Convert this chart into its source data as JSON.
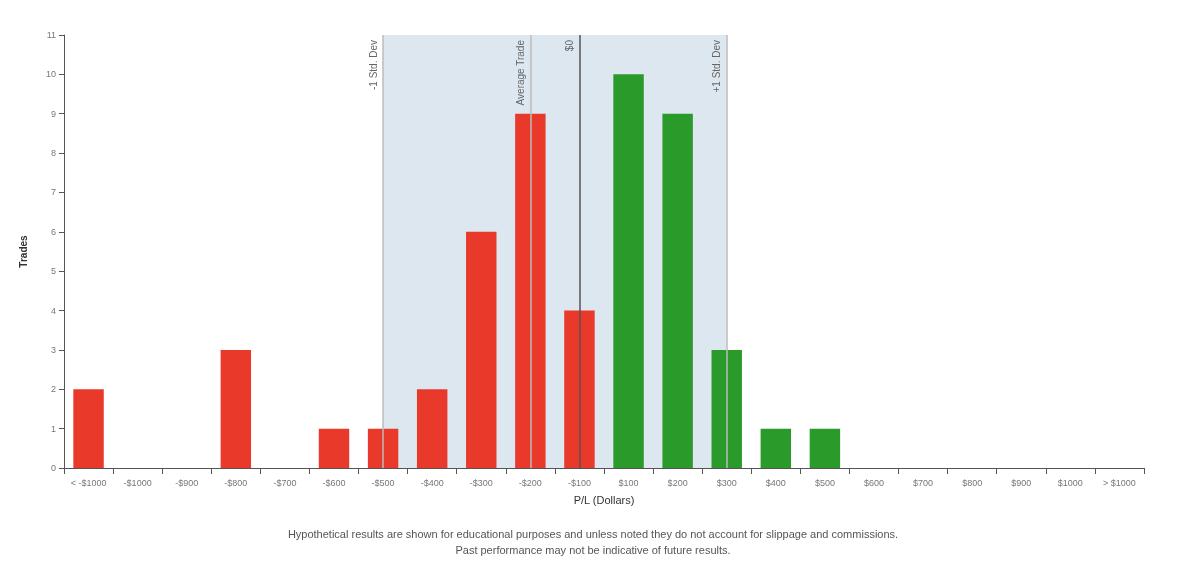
{
  "chart_data": {
    "type": "bar",
    "categories": [
      "< -$1000",
      "-$1000",
      "-$900",
      "-$800",
      "-$700",
      "-$600",
      "-$500",
      "-$400",
      "-$300",
      "-$200",
      "-$100",
      "$100",
      "$200",
      "$300",
      "$400",
      "$500",
      "$600",
      "$700",
      "$800",
      "$900",
      "$1000",
      "> $1000"
    ],
    "values": [
      2,
      0,
      0,
      3,
      0,
      1,
      1,
      2,
      6,
      9,
      4,
      10,
      9,
      3,
      1,
      1,
      0,
      0,
      0,
      0,
      0,
      0
    ],
    "colors": [
      "#e8392a",
      "#e8392a",
      "#e8392a",
      "#e8392a",
      "#e8392a",
      "#e8392a",
      "#e8392a",
      "#e8392a",
      "#e8392a",
      "#e8392a",
      "#e8392a",
      "#2a9a2a",
      "#2a9a2a",
      "#2a9a2a",
      "#2a9a2a",
      "#2a9a2a",
      "#2a9a2a",
      "#2a9a2a",
      "#2a9a2a",
      "#2a9a2a",
      "#2a9a2a",
      "#2a9a2a"
    ],
    "ylim": [
      0,
      11
    ],
    "yticks": [
      0,
      1,
      2,
      3,
      4,
      5,
      6,
      7,
      8,
      9,
      10,
      11
    ],
    "xlabel": "P/L (Dollars)",
    "ylabel": "Trades",
    "ref_lines": [
      {
        "axis": "x",
        "value": "-$500",
        "label": "-1 Std. Dev",
        "color": "#bbbbbb"
      },
      {
        "axis": "x",
        "value": "-$200",
        "label": "Average Trade",
        "color": "#bbbbbb"
      },
      {
        "axis": "x",
        "value": "-$100",
        "label": "$0",
        "color": "#555555"
      },
      {
        "axis": "x",
        "value": "$300",
        "label": "+1 Std. Dev",
        "color": "#bbbbbb"
      }
    ],
    "bands": [
      {
        "axis": "x",
        "from": "-$500",
        "to": "$300",
        "color": "#dde7ef"
      }
    ],
    "annotations": [
      "Hypothetical results are shown for educational purposes and unless noted they do not account for slippage and commissions.",
      "Past performance may not be indicative of future results."
    ],
    "grid": false
  }
}
